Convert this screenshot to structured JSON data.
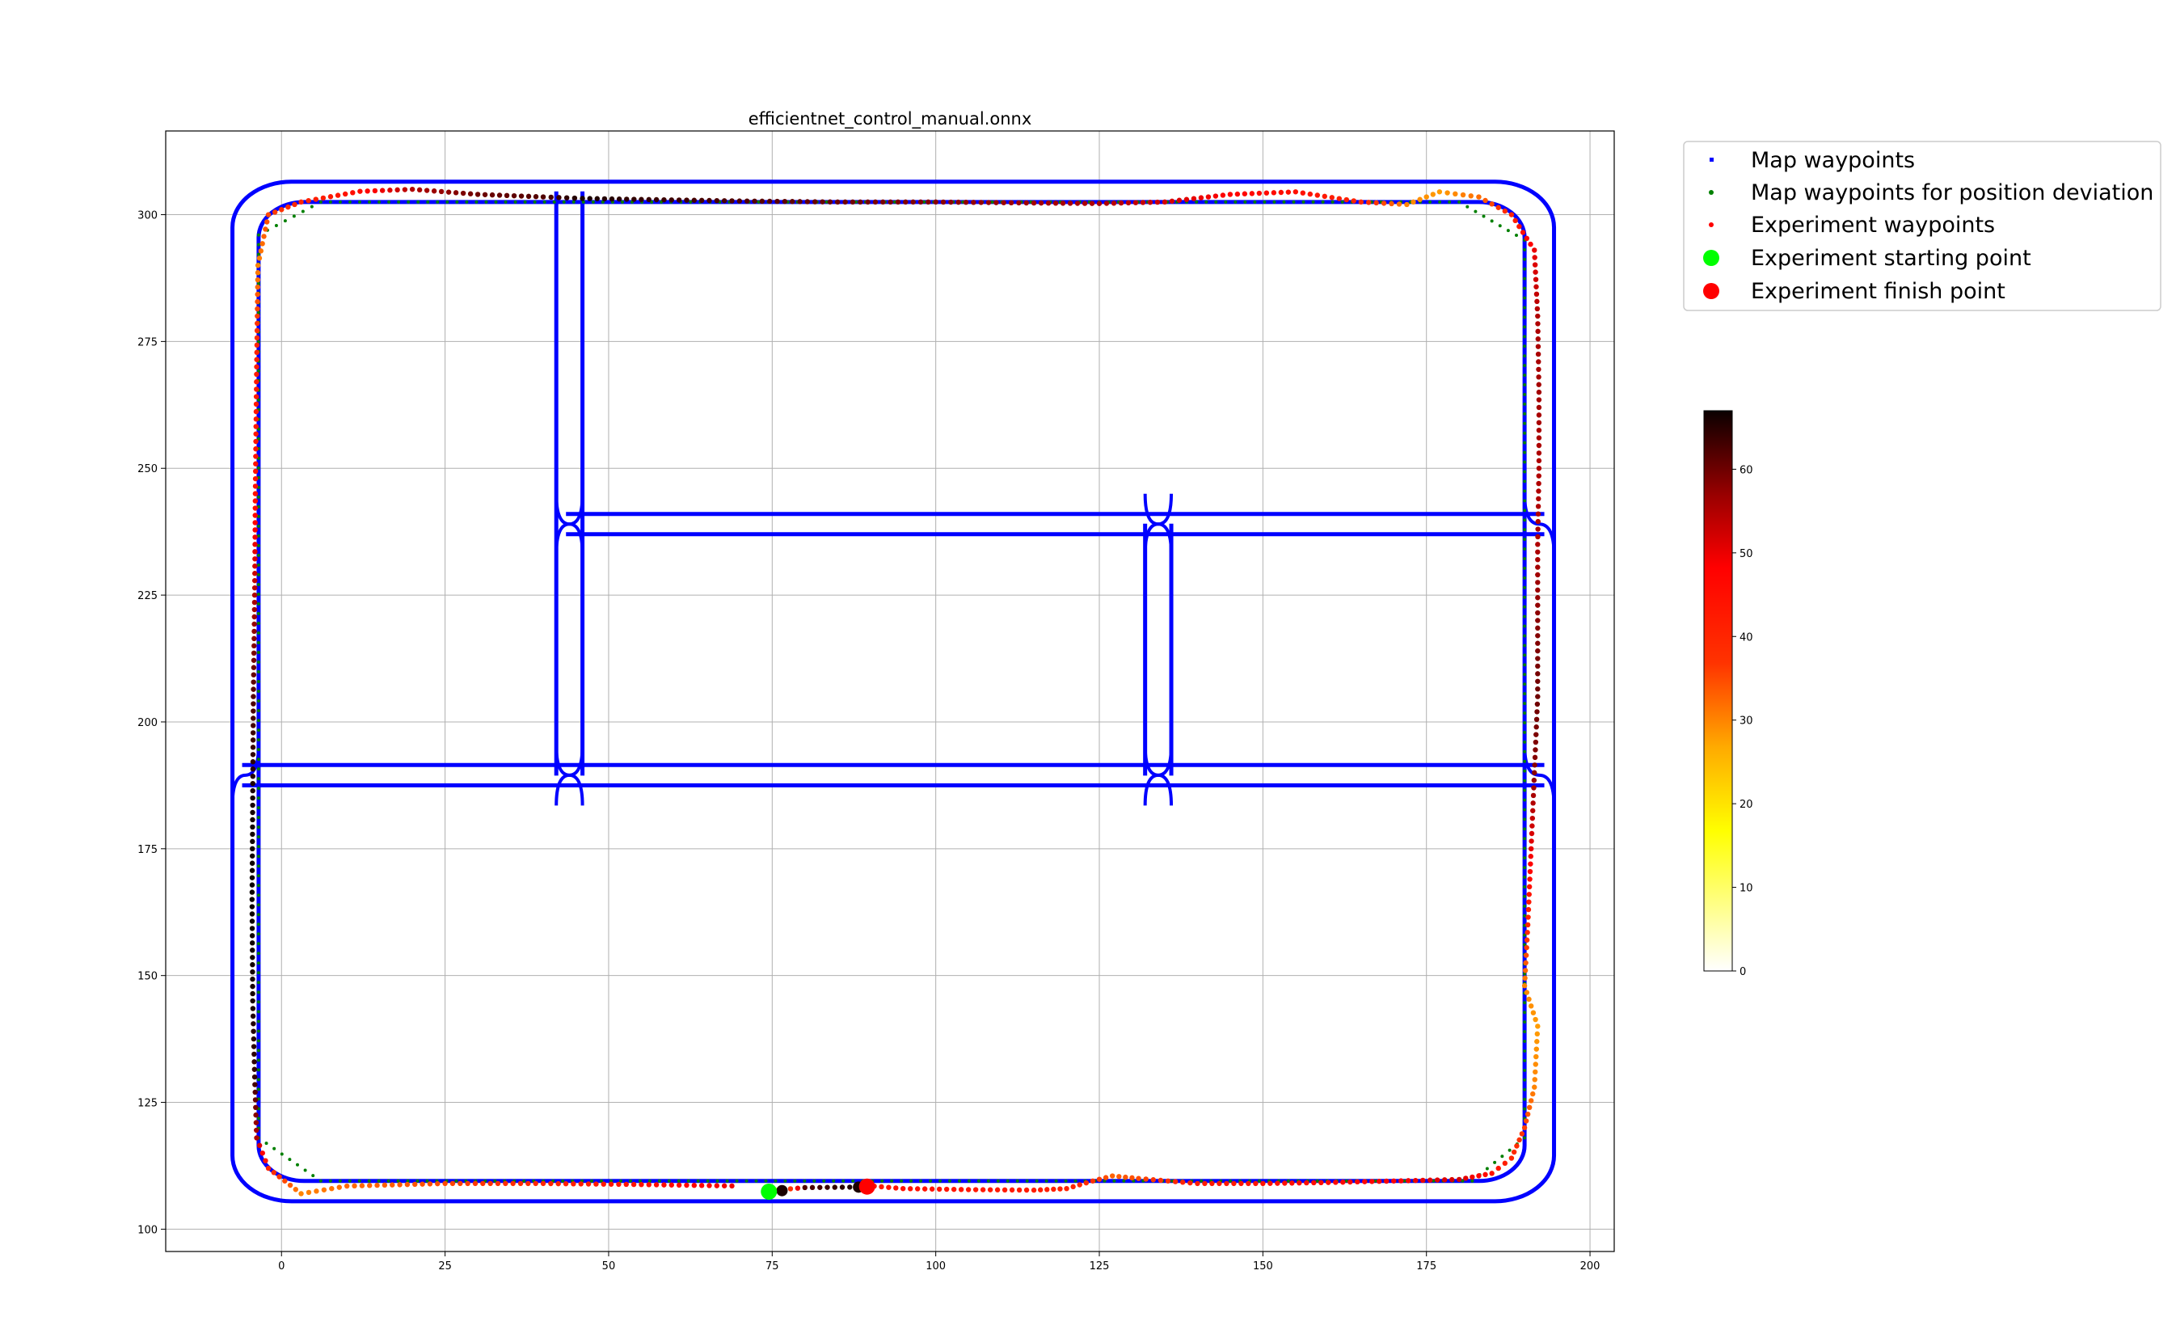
{
  "chart_data": {
    "type": "scatter",
    "title": "efficientnet_control_manual.onnx",
    "xlabel": "",
    "ylabel": "",
    "xlim": [
      -17.7,
      203.7
    ],
    "ylim": [
      95.6,
      316.5
    ],
    "xticks": [
      0,
      25,
      50,
      75,
      100,
      125,
      150,
      175,
      200
    ],
    "yticks": [
      100,
      125,
      150,
      175,
      200,
      225,
      250,
      275,
      300
    ],
    "grid": true,
    "legend_position": "outside-top-right",
    "legend": [
      {
        "label": "Map waypoints",
        "color": "#0000ff",
        "marker": "small-square"
      },
      {
        "label": "Map waypoints for position deviation",
        "color": "#008000",
        "marker": "small-dot"
      },
      {
        "label": "Experiment waypoints",
        "color": "#ff0000",
        "marker": "small-dot"
      },
      {
        "label": "Experiment starting point",
        "color": "#00ff00",
        "marker": "large-dot"
      },
      {
        "label": "Experiment finish point",
        "color": "#ff0000",
        "marker": "large-dot"
      }
    ],
    "colorbar": {
      "colormap": "hot_r",
      "range": [
        0,
        67
      ],
      "ticks": [
        0,
        10,
        20,
        30,
        40,
        50,
        60
      ]
    },
    "series": [
      {
        "name": "Map waypoints",
        "color": "#0000ff",
        "road_network": {
          "outer_loop": {
            "x_range": [
              -7.5,
              194.5
            ],
            "y_range": [
              105.5,
              306.5
            ],
            "corner_radius": 9
          },
          "inner_loop": {
            "x_range": [
              -3.5,
              190
            ],
            "y_range": [
              109.5,
              302.5
            ],
            "corner_radius": 7
          },
          "vertical_corridors": [
            {
              "x": [
                42,
                46
              ],
              "y_range": [
                187.5,
                306.5
              ]
            },
            {
              "x": [
                132,
                136
              ],
              "y_range": [
                187.5,
                241
              ]
            }
          ],
          "horizontal_corridors": [
            {
              "y": [
                237,
                241
              ],
              "x_range": [
                42,
                194.5
              ]
            },
            {
              "y": [
                187.5,
                191.5
              ],
              "x_range": [
                -7.5,
                194.5
              ]
            }
          ]
        }
      },
      {
        "name": "Map waypoints for position deviation",
        "color": "#008000",
        "reference_path": [
          [
            -3.5,
            296
          ],
          [
            6,
            302.5
          ],
          [
            180,
            302.5
          ],
          [
            190,
            295
          ],
          [
            190,
            118
          ],
          [
            182,
            109.5
          ],
          [
            6,
            109.5
          ],
          [
            -3.5,
            118
          ],
          [
            -3.5,
            296
          ]
        ]
      },
      {
        "name": "Experiment waypoints",
        "colored_by": "colorbar value (0–67)",
        "points": [
          [
            74.5,
            107.6,
            0
          ],
          [
            80,
            108.2,
            62
          ],
          [
            88,
            108.3,
            66
          ],
          [
            89.5,
            108.6,
            42
          ],
          [
            95,
            108,
            45
          ],
          [
            105,
            107.8,
            43
          ],
          [
            115,
            107.7,
            42
          ],
          [
            120,
            108,
            41
          ],
          [
            124,
            109.5,
            38
          ],
          [
            127,
            110.5,
            33
          ],
          [
            131,
            110,
            35
          ],
          [
            140,
            109,
            42
          ],
          [
            150,
            109,
            44
          ],
          [
            160,
            109.2,
            46
          ],
          [
            170,
            109.5,
            48
          ],
          [
            180,
            109.8,
            52
          ],
          [
            185,
            111,
            45
          ],
          [
            188,
            114,
            40
          ],
          [
            190,
            120,
            36
          ],
          [
            191.5,
            128,
            30
          ],
          [
            192,
            140,
            28
          ],
          [
            190,
            148,
            30
          ],
          [
            190.5,
            160,
            40
          ],
          [
            191,
            175,
            50
          ],
          [
            191.5,
            190,
            58
          ],
          [
            192,
            205,
            60
          ],
          [
            192,
            220,
            58
          ],
          [
            192,
            235,
            55
          ],
          [
            192.2,
            250,
            55
          ],
          [
            192.2,
            265,
            56
          ],
          [
            192,
            280,
            55
          ],
          [
            191.5,
            293,
            50
          ],
          [
            188,
            300,
            40
          ],
          [
            183,
            303.5,
            32
          ],
          [
            177,
            304.5,
            28
          ],
          [
            172,
            302,
            30
          ],
          [
            165,
            302.5,
            40
          ],
          [
            155,
            304.5,
            45
          ],
          [
            145,
            304,
            48
          ],
          [
            135,
            302.5,
            52
          ],
          [
            125,
            302.2,
            55
          ],
          [
            115,
            302.3,
            56
          ],
          [
            100,
            302.5,
            58
          ],
          [
            85,
            302.5,
            60
          ],
          [
            70,
            302.7,
            62
          ],
          [
            55,
            303,
            64
          ],
          [
            46,
            303.2,
            66
          ],
          [
            40,
            303.5,
            62
          ],
          [
            30,
            304,
            60
          ],
          [
            20,
            305,
            55
          ],
          [
            12,
            304.6,
            46
          ],
          [
            3,
            302.5,
            40
          ],
          [
            -2,
            300,
            35
          ],
          [
            -3.6,
            290,
            30
          ],
          [
            -3.8,
            270,
            42
          ],
          [
            -4,
            245,
            45
          ],
          [
            -4.1,
            225,
            55
          ],
          [
            -4.3,
            205,
            62
          ],
          [
            -4.4,
            185,
            66
          ],
          [
            -4.5,
            165,
            67
          ],
          [
            -4.4,
            145,
            66
          ],
          [
            -4.1,
            130,
            64
          ],
          [
            -3.8,
            118,
            55
          ],
          [
            -2,
            112,
            40
          ],
          [
            3,
            107,
            30
          ],
          [
            10,
            108.5,
            32
          ],
          [
            25,
            109,
            35
          ],
          [
            40,
            109,
            40
          ],
          [
            55,
            108.8,
            45
          ],
          [
            70,
            108.5,
            50
          ]
        ]
      },
      {
        "name": "Experiment starting point",
        "color": "#00ff00",
        "points": [
          [
            74.5,
            107.4
          ]
        ]
      },
      {
        "name": "Experiment finish point",
        "color": "#ff0000",
        "points": [
          [
            89.5,
            108.4
          ]
        ]
      }
    ],
    "highlight_points": [
      [
        76.5,
        107.6
      ],
      [
        88.2,
        108.3
      ]
    ]
  }
}
